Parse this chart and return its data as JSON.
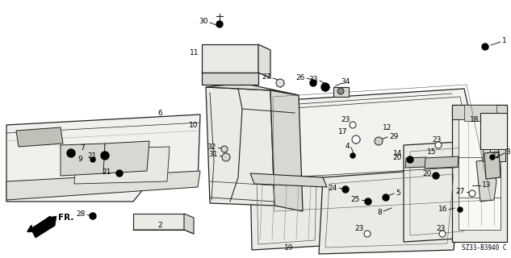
{
  "diagram_code": "SZ33-B3940 C",
  "bg_color": "#ffffff",
  "fig_width": 6.33,
  "fig_height": 3.2,
  "dpi": 100
}
